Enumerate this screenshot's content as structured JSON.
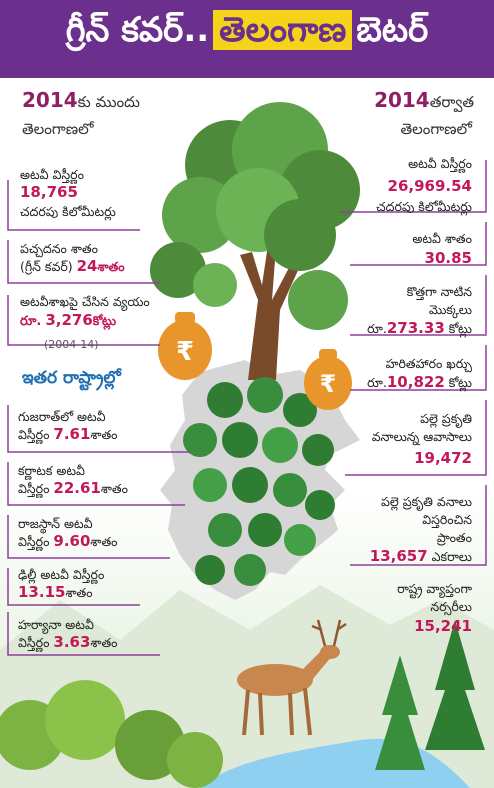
{
  "title": {
    "part1": "గ్రీన్ కవర్..",
    "part2": "తెలంగాణ",
    "part3": "బెటర్"
  },
  "left": {
    "header_year": "2014",
    "header_suffix": "కు ముందు",
    "header_line2": "తెలంగాణలో",
    "forest_area_label": "అటవీ విస్తీర్ణం",
    "forest_area_value": "18,765",
    "forest_area_unit": "చదరపు కిలోమీటర్లు",
    "green_cover_label": "పచ్చదనం శాతం",
    "green_cover_label2": "(గ్రీన్ కవర్)",
    "green_cover_value": "24",
    "green_cover_unit": "శాతం",
    "spend_label": "అటవీశాఖపై చేసిన వ్యయం",
    "spend_prefix": "రూ.",
    "spend_value": "3,276",
    "spend_unit": "కోట్లు",
    "spend_period": "(2004-14)"
  },
  "other_states": {
    "heading": "ఇతర రాష్ట్రాల్లో",
    "items": [
      {
        "line1": "గుజరాత్‌లో అటవీ",
        "line2_prefix": "విస్తీర్ణం",
        "value": "7.61",
        "unit": "శాతం"
      },
      {
        "line1": "కర్ణాటక అటవీ",
        "line2_prefix": "విస్తీర్ణం",
        "value": "22.61",
        "unit": "శాతం"
      },
      {
        "line1": "రాజస్థాన్ అటవీ",
        "line2_prefix": "విస్తీర్ణం",
        "value": "9.60",
        "unit": "శాతం"
      },
      {
        "line1": "ఢిల్లీ అటవీ విస్తీర్ణం",
        "line2_prefix": "",
        "value": "13.15",
        "unit": "శాతం"
      },
      {
        "line1": "హర్యానా అటవీ",
        "line2_prefix": "విస్తీర్ణం",
        "value": "3.63",
        "unit": "శాతం"
      }
    ]
  },
  "right": {
    "header_year": "2014",
    "header_suffix": "తర్వాత",
    "header_line2": "తెలంగాణలో",
    "forest_area_label": "అటవీ విస్తీర్ణం",
    "forest_area_value": "26,969.54",
    "forest_area_unit": "చదరపు కిలోమీటర్లు",
    "forest_pct_label": "అటవీ శాతం",
    "forest_pct_value": "30.85",
    "new_plants_label": "కొత్తగా నాటిన",
    "new_plants_label2": "మొక్కలు",
    "new_plants_prefix": "రూ.",
    "new_plants_value": "273.33",
    "new_plants_unit": "కోట్లు",
    "haritha_label": "హరితహారం ఖర్చు",
    "haritha_prefix": "రూ.",
    "haritha_value": "10,822",
    "haritha_unit": "కోట్లు",
    "palle_label": "పల్లె ప్రకృతి",
    "palle_label2": "వనాలున్న ఆవాసాలు",
    "palle_value": "19,472",
    "pallevanalu_label": "పల్లె ప్రకృతి వనాలు",
    "pallevanalu_label2": "విస్తరించిన",
    "pallevanalu_label3": "ప్రాంతం",
    "pallevanalu_value": "13,657",
    "pallevanalu_unit": "ఎకరాలు",
    "nursery_label": "రాష్ట్ర వ్యాప్తంగా",
    "nursery_label2": "నర్సరీలు",
    "nursery_value": "15,241"
  },
  "rupee_symbol": "₹",
  "colors": {
    "header_bg": "#6b2f8e",
    "title_highlight": "#f5d31b",
    "value_magenta": "#c2185b",
    "subhead_blue": "#1f6fb2",
    "connector_purple": "#8e3f9a"
  }
}
